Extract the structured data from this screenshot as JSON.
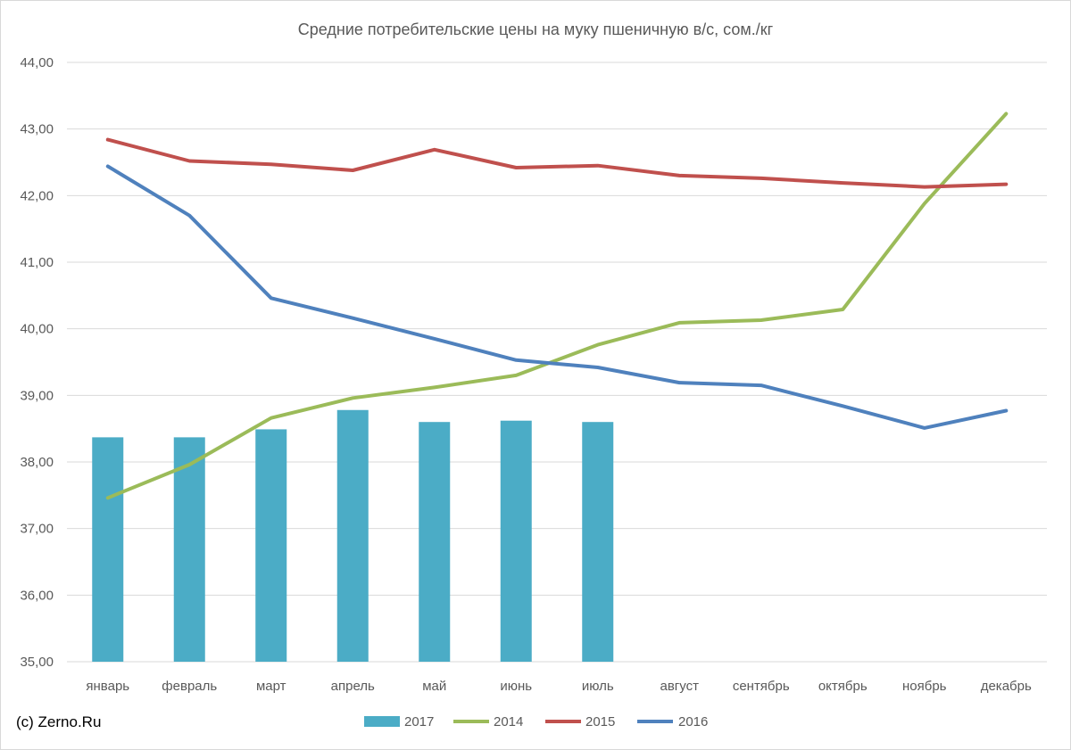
{
  "chart_data": {
    "type": "bar",
    "title": "Средние потребительские  цены на муку пшеничную в/с, сом./кг",
    "xlabel": "",
    "ylabel": "",
    "ylim": [
      35,
      44
    ],
    "y_ticks": [
      "35,00",
      "36,00",
      "37,00",
      "38,00",
      "39,00",
      "40,00",
      "41,00",
      "42,00",
      "43,00",
      "44,00"
    ],
    "categories": [
      "январь",
      "февраль",
      "март",
      "апрель",
      "май",
      "июнь",
      "июль",
      "август",
      "сентябрь",
      "октябрь",
      "ноябрь",
      "декабрь"
    ],
    "grid": true,
    "legend_position": "bottom",
    "series": [
      {
        "name": "2017",
        "kind": "bar",
        "color": "#4bacc6",
        "values": [
          38.37,
          38.37,
          38.49,
          38.78,
          38.6,
          38.62,
          38.6,
          null,
          null,
          null,
          null,
          null
        ]
      },
      {
        "name": "2014",
        "kind": "line",
        "color": "#9bbb59",
        "values": [
          37.46,
          37.96,
          38.66,
          38.96,
          39.12,
          39.3,
          39.76,
          40.09,
          40.13,
          40.29,
          41.88,
          43.23
        ]
      },
      {
        "name": "2015",
        "kind": "line",
        "color": "#c0504d",
        "values": [
          42.84,
          42.52,
          42.47,
          42.38,
          42.69,
          42.42,
          42.45,
          42.3,
          42.26,
          42.19,
          42.13,
          42.17
        ]
      },
      {
        "name": "2016",
        "kind": "line",
        "color": "#4f81bd",
        "values": [
          42.44,
          41.7,
          40.46,
          40.16,
          39.85,
          39.53,
          39.42,
          39.19,
          39.15,
          38.84,
          38.51,
          38.77
        ]
      }
    ]
  },
  "credit": "(c) Zerno.Ru"
}
